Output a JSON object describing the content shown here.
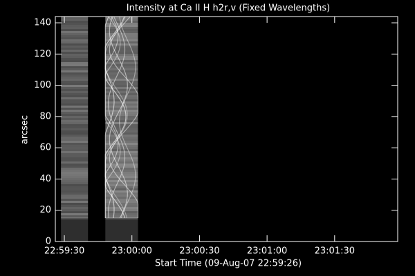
{
  "chart_data": {
    "type": "image",
    "title": "Intensity at Ca II H h2r,v (Fixed Wavelengths)",
    "xlabel": "Start Time (09-Aug-07 22:59:26)",
    "ylabel": "arcsec",
    "xlim": [
      0,
      152
    ],
    "xticks": [
      {
        "value": 4,
        "label": "22:59:30"
      },
      {
        "value": 34,
        "label": "23:00:00"
      },
      {
        "value": 64,
        "label": "23:00:30"
      },
      {
        "value": 94,
        "label": "23:01:00"
      },
      {
        "value": 124,
        "label": "23:01:30"
      }
    ],
    "ylim": [
      0,
      144
    ],
    "yticks": [
      0,
      20,
      40,
      60,
      80,
      100,
      120,
      140
    ],
    "strips": [
      {
        "x0": 2.5,
        "x1": 14.5,
        "y0": 0,
        "y1": 15,
        "color": "#2e2e2e"
      },
      {
        "x0": 2.5,
        "x1": 14.5,
        "y0": 15,
        "y1": 144,
        "color": "#555555"
      },
      {
        "x0": 22.2,
        "x1": 36.7,
        "y0": 0,
        "y1": 15,
        "color": "#2e2e2e"
      },
      {
        "x0": 22.2,
        "x1": 36.7,
        "y0": 15,
        "y1": 144,
        "color": "#6a6a6a"
      }
    ]
  }
}
